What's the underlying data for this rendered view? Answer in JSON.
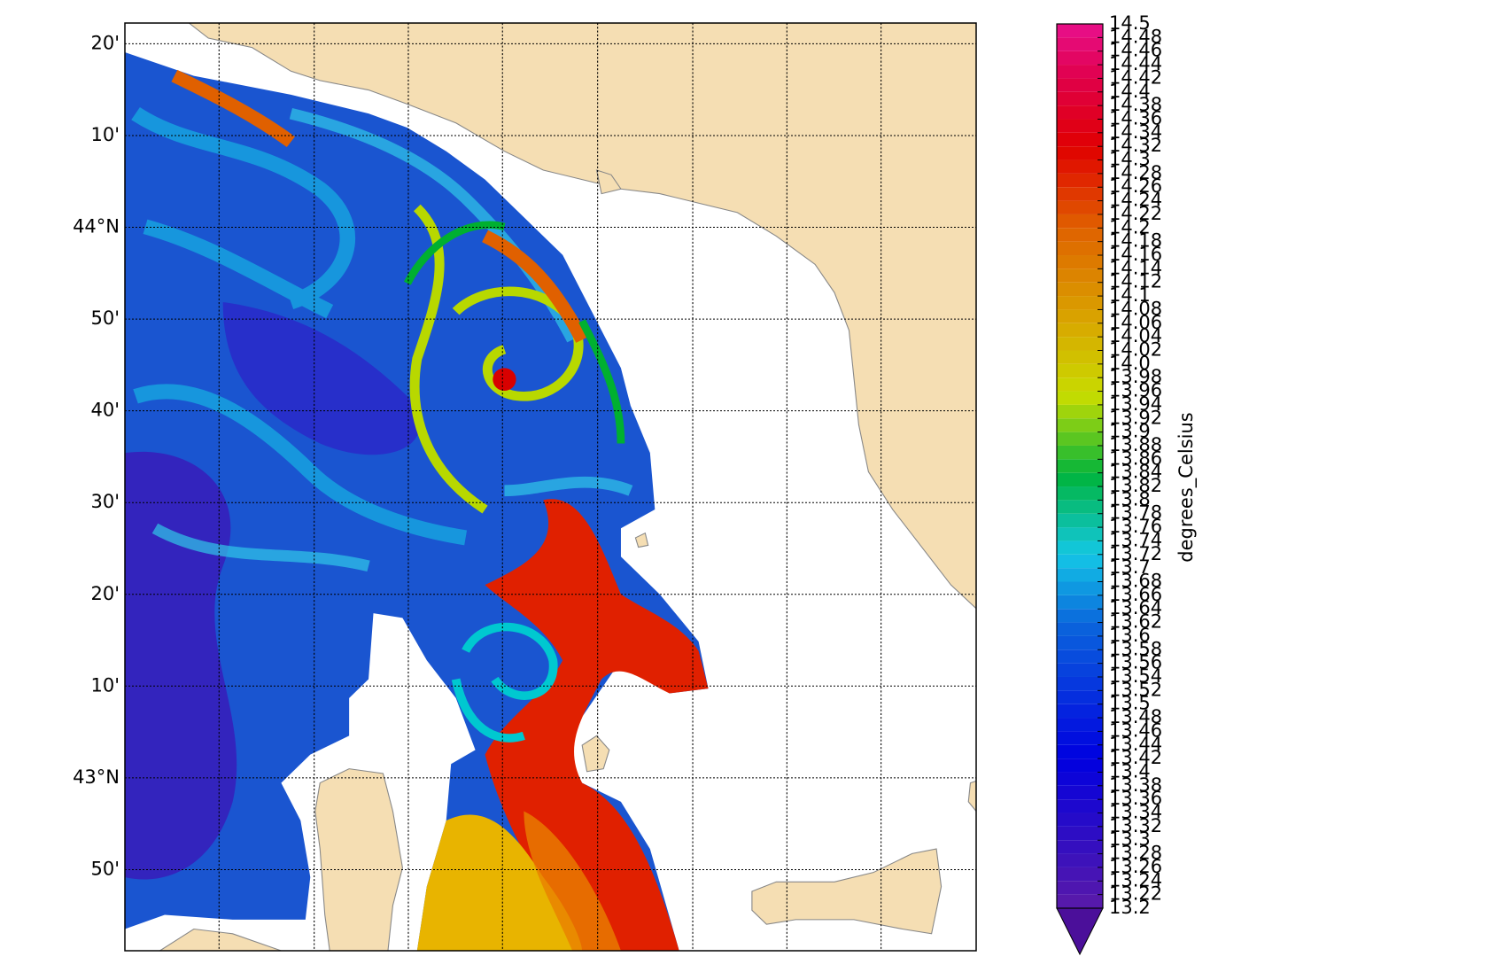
{
  "map": {
    "lat_lim": [
      42.686,
      44.371
    ],
    "lat_ticks": [
      {
        "value": 44.3333,
        "label": "20'"
      },
      {
        "value": 44.1667,
        "label": "10'"
      },
      {
        "value": 44,
        "label": "44°N"
      },
      {
        "value": 43.8333,
        "label": "50'"
      },
      {
        "value": 43.6667,
        "label": "40'"
      },
      {
        "value": 43.5,
        "label": "30'"
      },
      {
        "value": 43.3333,
        "label": "20'"
      },
      {
        "value": 43.1667,
        "label": "10'"
      },
      {
        "value": 43,
        "label": "43°N"
      },
      {
        "value": 42.8333,
        "label": "50'"
      }
    ]
  },
  "colorbar": {
    "label": "degrees_Celsius",
    "lim": [
      13.2,
      14.5
    ],
    "ticks": [
      13.2,
      13.22,
      13.24,
      13.26,
      13.28,
      13.3,
      13.32,
      13.34,
      13.36,
      13.38,
      13.4,
      13.42,
      13.44,
      13.46,
      13.48,
      13.5,
      13.52,
      13.54,
      13.56,
      13.58,
      13.6,
      13.62,
      13.64,
      13.66,
      13.68,
      13.7,
      13.72,
      13.74,
      13.76,
      13.78,
      13.8,
      13.82,
      13.84,
      13.86,
      13.88,
      13.9,
      13.92,
      13.94,
      13.96,
      13.98,
      {
        "value": 14,
        "label": "14.0"
      },
      14.02,
      14.04,
      14.06,
      14.08,
      14.1,
      14.12,
      14.14,
      14.16,
      14.18,
      14.2,
      14.22,
      14.24,
      14.26,
      14.28,
      14.3,
      14.32,
      14.34,
      14.36,
      14.38,
      14.4,
      14.42,
      14.44,
      14.46,
      14.48,
      14.5
    ]
  }
}
